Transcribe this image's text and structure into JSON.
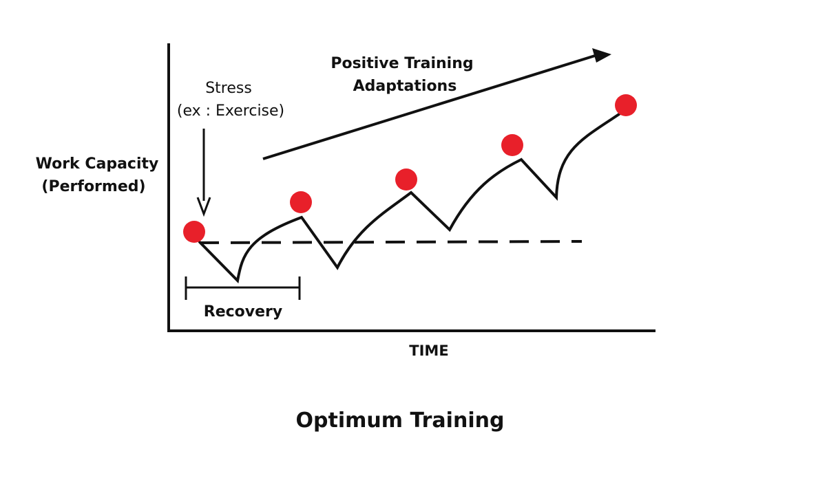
{
  "diagram": {
    "title": "Optimum Training",
    "y_axis_label": [
      "Work Capacity",
      "(Performed)"
    ],
    "x_axis_label": "TIME",
    "stress_label": [
      "Stress",
      "(ex : Exercise)"
    ],
    "trend_label": [
      "Positive Training",
      "Adaptations"
    ],
    "recovery_label": "Recovery",
    "colors": {
      "ink": "#111111",
      "marker": "#e8202a",
      "background": "#ffffff"
    },
    "peak_count": 5
  }
}
